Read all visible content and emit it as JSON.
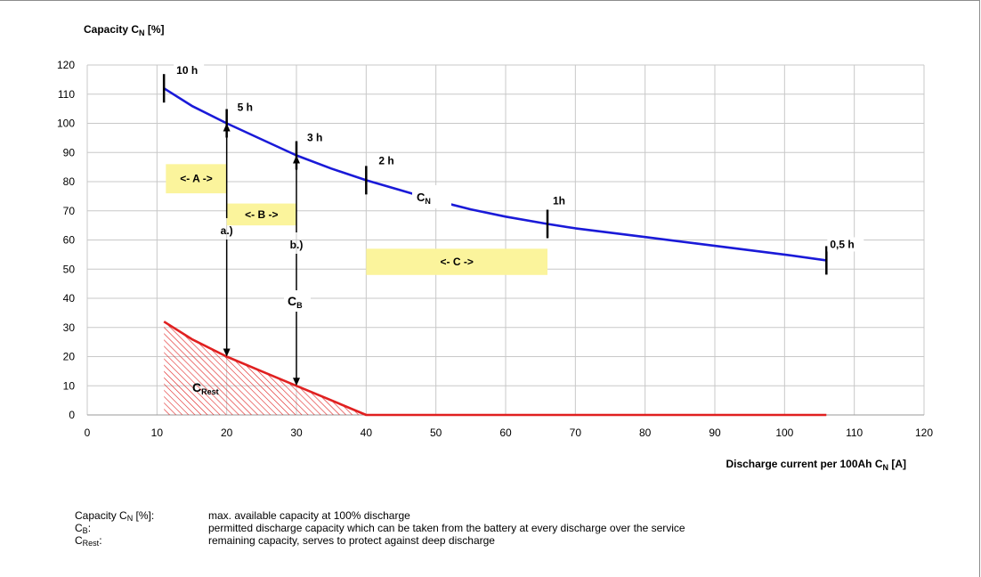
{
  "chart_data": {
    "type": "line",
    "title": "",
    "ylabel_main": "Capacity C",
    "ylabel_sub": "N",
    "ylabel_tail": " [%]",
    "xlabel_main": "Discharge current per 100Ah C",
    "xlabel_sub": "N",
    "xlabel_tail": " [A]",
    "xlim": [
      0,
      120
    ],
    "ylim": [
      0,
      120
    ],
    "xticks": [
      0,
      10,
      20,
      30,
      40,
      50,
      60,
      70,
      80,
      90,
      100,
      110,
      120
    ],
    "yticks": [
      0,
      10,
      20,
      30,
      40,
      50,
      60,
      70,
      80,
      90,
      100,
      110,
      120
    ],
    "grid": true,
    "series": [
      {
        "name": "C_N",
        "label_main": "C",
        "label_sub": "N",
        "color": "#1a1ad8",
        "x": [
          11,
          15,
          20,
          25,
          30,
          35,
          40,
          45,
          50,
          55,
          60,
          66,
          70,
          80,
          90,
          100,
          106
        ],
        "y": [
          112,
          106,
          100,
          94.5,
          89,
          84.5,
          80.5,
          77,
          73.5,
          70.5,
          68,
          65.5,
          64,
          61,
          58,
          55,
          53
        ]
      },
      {
        "name": "C_Rest",
        "label_main": "C",
        "label_sub": "Rest",
        "color": "#e02020",
        "x": [
          11,
          15,
          20,
          25,
          30,
          35,
          40,
          106
        ],
        "y": [
          32,
          26,
          20,
          15,
          10,
          5,
          0,
          0
        ]
      }
    ],
    "time_markers": [
      {
        "label": "10 h",
        "x": 11,
        "y": 112
      },
      {
        "label": "5 h",
        "x": 20,
        "y": 100
      },
      {
        "label": "3 h",
        "x": 30,
        "y": 89
      },
      {
        "label": "2 h",
        "x": 40,
        "y": 80.5
      },
      {
        "label": "1h",
        "x": 66,
        "y": 65.5
      },
      {
        "label": "0,5 h",
        "x": 106,
        "y": 53
      }
    ],
    "arrows": [
      {
        "label": "a.)",
        "x": 20,
        "y_top": 100,
        "y_bottom": 20
      },
      {
        "label": "b.)",
        "x": 30,
        "y_top": 89,
        "y_bottom": 10
      }
    ],
    "range_labels": [
      {
        "label": "<- A ->",
        "x_from": 10,
        "x_to": 20
      },
      {
        "label": "<- B ->",
        "x_from": 20,
        "x_to": 30
      },
      {
        "label": "<-   C   ->",
        "x_from": 40,
        "x_to": 66
      }
    ],
    "cb_label_main": "C",
    "cb_label_sub": "B",
    "crest_label_main": "C",
    "crest_label_sub": "Rest",
    "highlight_color": "#fbf49c"
  },
  "legend": [
    {
      "term_main": "Capacity C",
      "term_sub": "N",
      "term_tail": " [%]:",
      "desc": "max. available capacity at 100% discharge"
    },
    {
      "term_main": "C",
      "term_sub": "B",
      "term_tail": ":",
      "desc": "permitted discharge capacity which can be taken from the battery at every discharge over the service"
    },
    {
      "term_main": "C",
      "term_sub": "Rest",
      "term_tail": ":",
      "desc": "remaining capacity, serves to protect against deep discharge"
    }
  ]
}
